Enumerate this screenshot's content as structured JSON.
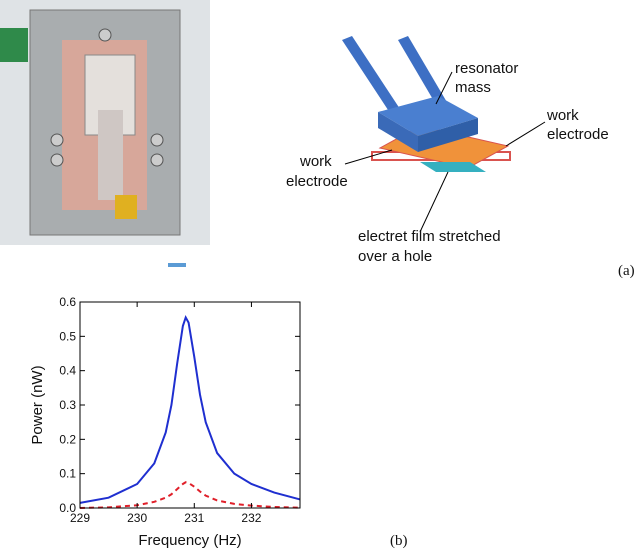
{
  "diagram": {
    "labels": [
      "resonator",
      "mass",
      "work",
      "electrode",
      "work",
      "electrode",
      "electret film stretched",
      "over a hole"
    ]
  },
  "panel_labels": [
    "(a)",
    "(b)"
  ],
  "chart_data": {
    "type": "line",
    "xlabel": "Frequency (Hz)",
    "ylabel": "Power (nW)",
    "x": [
      229,
      229.5,
      230,
      230.3,
      230.5,
      230.6,
      230.7,
      230.8,
      230.85,
      230.9,
      231.0,
      231.1,
      231.2,
      231.4,
      231.7,
      232,
      232.4,
      232.85
    ],
    "series": [
      {
        "color": "#1f2fd0",
        "dash": "solid",
        "values": [
          0.015,
          0.03,
          0.07,
          0.13,
          0.22,
          0.3,
          0.42,
          0.53,
          0.555,
          0.54,
          0.44,
          0.33,
          0.25,
          0.16,
          0.1,
          0.07,
          0.045,
          0.025
        ]
      },
      {
        "color": "#e0202a",
        "dash": "dashed",
        "values": [
          0,
          0.002,
          0.008,
          0.018,
          0.03,
          0.04,
          0.055,
          0.07,
          0.075,
          0.073,
          0.062,
          0.048,
          0.036,
          0.022,
          0.012,
          0.007,
          0.003,
          0.001
        ]
      }
    ],
    "xlim": [
      229,
      232.85
    ],
    "ylim": [
      0,
      0.6
    ],
    "xticks": [
      229,
      230,
      231,
      232
    ],
    "yticks": [
      {
        "value": 0,
        "label": "0.0"
      },
      0.1,
      0.2,
      0.3,
      0.4,
      0.5,
      0.6
    ]
  }
}
